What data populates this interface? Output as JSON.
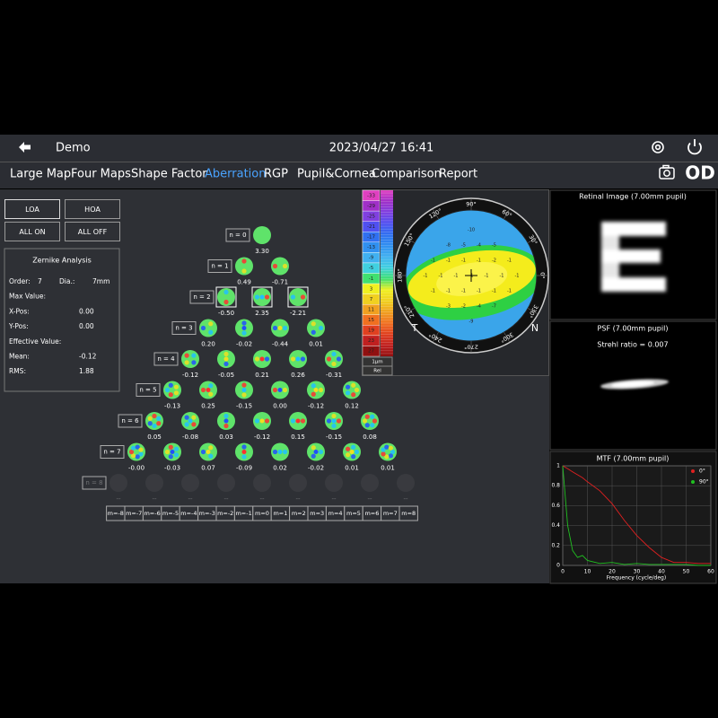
{
  "header": {
    "title": "Demo",
    "datetime": "2023/04/27 16:41"
  },
  "nav": {
    "tabs": [
      "Large Map",
      "Four Maps",
      "Shape Factor",
      "Aberration",
      "RGP",
      "Pupil&Cornea",
      "Comparison",
      "Report"
    ],
    "active": 3,
    "eye": "OD"
  },
  "buttons": [
    "LOA",
    "HOA",
    "ALL ON",
    "ALL OFF"
  ],
  "zernike_analysis": {
    "title": "Zernike Analysis",
    "rows": [
      [
        "Order:",
        "7",
        "Dia.:",
        "7mm"
      ],
      [
        "Max Value:"
      ],
      [
        "X-Pos:",
        "0.00"
      ],
      [
        "Y-Pos:",
        "0.00"
      ],
      [
        "Effective Value:"
      ],
      [
        "Mean:",
        "-0.12"
      ],
      [
        "RMS:",
        "1.88"
      ]
    ]
  },
  "pyramid": {
    "rows": [
      {
        "label": "n = 0",
        "values": [
          "3.30"
        ]
      },
      {
        "label": "n = 1",
        "values": [
          "0.49",
          "-0.71"
        ]
      },
      {
        "label": "n = 2",
        "values": [
          "-0.50",
          "2.35",
          "-2.21"
        ]
      },
      {
        "label": "n = 3",
        "values": [
          "0.20",
          "-0.02",
          "-0.44",
          "0.01"
        ]
      },
      {
        "label": "n = 4",
        "values": [
          "-0.12",
          "-0.05",
          "0.21",
          "0.26",
          "-0.31"
        ]
      },
      {
        "label": "n = 5",
        "values": [
          "-0.13",
          "0.25",
          "-0.15",
          "0.00",
          "-0.12",
          "0.12"
        ]
      },
      {
        "label": "n = 6",
        "values": [
          "0.05",
          "-0.08",
          "0.03",
          "-0.12",
          "0.15",
          "-0.15",
          "0.08"
        ]
      },
      {
        "label": "n = 7",
        "values": [
          "-0.00",
          "-0.03",
          "0.07",
          "-0.09",
          "0.02",
          "-0.02",
          "0.01",
          "0.01"
        ]
      },
      {
        "label": "n = 8",
        "values": [
          "--",
          "--",
          "--",
          "--",
          "--",
          "--",
          "--",
          "--",
          "--"
        ]
      }
    ],
    "m_labels": [
      "m=-8",
      "m=-7",
      "m=-6",
      "m=-5",
      "m=-4",
      "m=-3",
      "m=-2",
      "m=-1",
      "m=0",
      "m=1",
      "m=2",
      "m=3",
      "m=4",
      "m=5",
      "m=6",
      "m=7",
      "m=8"
    ]
  },
  "color_scale": {
    "labels": [
      "-33",
      "-29",
      "-25",
      "-21",
      "-17",
      "-13",
      "-9",
      "-5",
      "-1",
      "3",
      "7",
      "11",
      "15",
      "19",
      "23",
      "27"
    ],
    "colors": [
      "#e040c0",
      "#a030c8",
      "#8040e0",
      "#5050f0",
      "#3070f0",
      "#3090f0",
      "#40b0f0",
      "#40d0e0",
      "#40e070",
      "#f0f020",
      "#f0d020",
      "#f0a020",
      "#f07020",
      "#e04020",
      "#c02020",
      "#901010"
    ],
    "unit": "1μm",
    "mode": "Rel"
  },
  "map": {
    "angles": [
      "90°",
      "60°",
      "30°",
      "0°",
      "330°",
      "300°",
      "270°",
      "240°",
      "210°",
      "180°",
      "150°",
      "120°"
    ],
    "left": "T",
    "right": "N",
    "values": [
      [
        "-10"
      ],
      [
        "-8",
        "-5",
        "-4",
        "-5"
      ],
      [
        "-1",
        "-1",
        "-1",
        "-1",
        "-2",
        "-1"
      ],
      [
        "-1",
        "-1",
        "-1",
        "-1",
        "-1",
        "-1",
        "-1"
      ],
      [
        "-1",
        "-1",
        "-1",
        "-1",
        "-1",
        "-1"
      ],
      [
        "-3",
        "-2",
        "-4",
        "-7"
      ],
      [
        "-9"
      ]
    ]
  },
  "retinal": {
    "title": "Retinal Image (7.00mm pupil)"
  },
  "psf": {
    "title": "PSF (7.00mm pupil)",
    "strehl": "Strehl ratio = 0.007"
  },
  "mtf": {
    "type": "line",
    "title": "MTF (7.00mm pupil)",
    "x_label": "Frequency (cycle/deg)",
    "x": [
      0,
      2,
      4,
      6,
      8,
      10,
      15,
      20,
      25,
      30,
      35,
      40,
      45,
      50,
      55,
      60
    ],
    "series": [
      {
        "name": "0°",
        "color": "#e02020",
        "values": [
          1,
          0.97,
          0.94,
          0.91,
          0.88,
          0.84,
          0.75,
          0.62,
          0.45,
          0.3,
          0.18,
          0.08,
          0.03,
          0.03,
          0.02,
          0.02
        ]
      },
      {
        "name": "90°",
        "color": "#20c020",
        "values": [
          1,
          0.4,
          0.15,
          0.08,
          0.1,
          0.05,
          0.02,
          0.03,
          0.01,
          0.02,
          0.01,
          0.01,
          0.01,
          0.01,
          0.0,
          0.0
        ]
      }
    ],
    "xlim": [
      0,
      60
    ],
    "ylim": [
      0,
      1
    ],
    "xticks": [
      0,
      10,
      20,
      30,
      40,
      50,
      60
    ],
    "yticks": [
      0,
      0.2,
      0.4,
      0.6,
      0.8,
      1
    ],
    "grid": true
  }
}
